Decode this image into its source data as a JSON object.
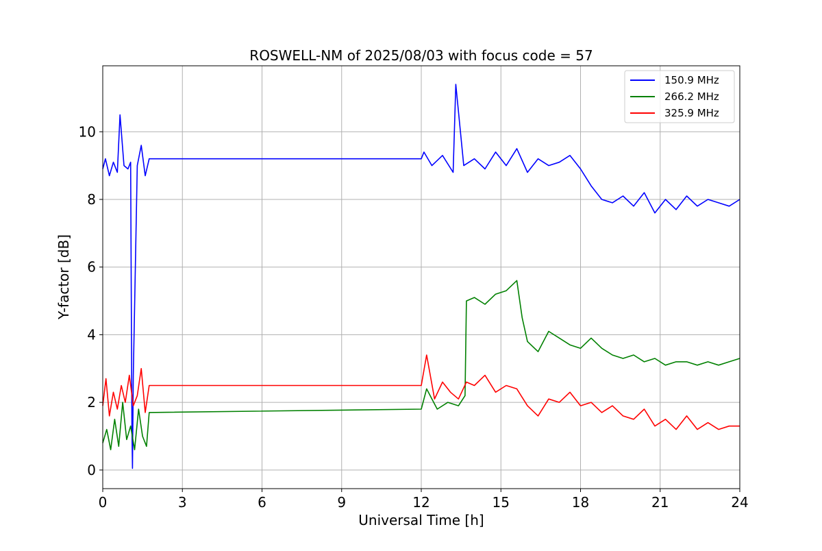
{
  "chart_data": {
    "type": "line",
    "title": "ROSWELL-NM of 2025/08/03 with focus code = 57",
    "xlabel": "Universal Time [h]",
    "ylabel": "Y-factor [dB]",
    "xlim": [
      0,
      24
    ],
    "ylim": [
      -0.55,
      11.95
    ],
    "xticks": [
      0,
      3,
      6,
      9,
      12,
      15,
      18,
      21,
      24
    ],
    "yticks": [
      0,
      2,
      4,
      6,
      8,
      10
    ],
    "grid": true,
    "legend_position": "top-right",
    "series": [
      {
        "name": "150.9 MHz",
        "color": "#0000ff",
        "x": [
          0.0,
          0.1,
          0.25,
          0.4,
          0.55,
          0.65,
          0.8,
          0.95,
          1.05,
          1.1,
          1.12,
          1.15,
          1.3,
          1.45,
          1.6,
          1.75,
          12.0,
          12.1,
          12.4,
          12.8,
          13.2,
          13.3,
          13.6,
          14.0,
          14.4,
          14.8,
          15.2,
          15.6,
          16.0,
          16.4,
          16.8,
          17.2,
          17.6,
          18.0,
          18.4,
          18.8,
          19.2,
          19.6,
          20.0,
          20.4,
          20.8,
          21.2,
          21.6,
          22.0,
          22.4,
          22.8,
          23.2,
          23.6,
          24.0
        ],
        "y": [
          8.9,
          9.2,
          8.7,
          9.1,
          8.8,
          10.5,
          9.0,
          8.9,
          9.1,
          1.2,
          0.05,
          2.8,
          9.0,
          9.6,
          8.7,
          9.2,
          9.2,
          9.4,
          9.0,
          9.3,
          8.8,
          11.4,
          9.0,
          9.2,
          8.9,
          9.4,
          9.0,
          9.5,
          8.8,
          9.2,
          9.0,
          9.1,
          9.3,
          8.9,
          8.4,
          8.0,
          7.9,
          8.1,
          7.8,
          8.2,
          7.6,
          8.0,
          7.7,
          8.1,
          7.8,
          8.0,
          7.9,
          7.8,
          8.0
        ]
      },
      {
        "name": "266.2 MHz",
        "color": "#008000",
        "x": [
          0.0,
          0.15,
          0.3,
          0.45,
          0.6,
          0.75,
          0.9,
          1.05,
          1.2,
          1.35,
          1.5,
          1.65,
          1.75,
          12.0,
          12.2,
          12.6,
          13.0,
          13.4,
          13.65,
          13.7,
          14.0,
          14.4,
          14.8,
          15.2,
          15.6,
          15.8,
          16.0,
          16.4,
          16.8,
          17.2,
          17.6,
          18.0,
          18.4,
          18.8,
          19.2,
          19.6,
          20.0,
          20.4,
          20.8,
          21.2,
          21.6,
          22.0,
          22.4,
          22.8,
          23.2,
          23.6,
          24.0
        ],
        "y": [
          0.8,
          1.2,
          0.6,
          1.5,
          0.7,
          2.0,
          0.9,
          1.3,
          0.6,
          1.8,
          1.0,
          0.7,
          1.7,
          1.8,
          2.4,
          1.8,
          2.0,
          1.9,
          2.2,
          5.0,
          5.1,
          4.9,
          5.2,
          5.3,
          5.6,
          4.5,
          3.8,
          3.5,
          4.1,
          3.9,
          3.7,
          3.6,
          3.9,
          3.6,
          3.4,
          3.3,
          3.4,
          3.2,
          3.3,
          3.1,
          3.2,
          3.2,
          3.1,
          3.2,
          3.1,
          3.2,
          3.3
        ]
      },
      {
        "name": "325.9 MHz",
        "color": "#ff0000",
        "x": [
          0.0,
          0.12,
          0.25,
          0.4,
          0.55,
          0.7,
          0.85,
          1.0,
          1.15,
          1.3,
          1.45,
          1.6,
          1.75,
          12.0,
          12.2,
          12.5,
          12.8,
          13.1,
          13.4,
          13.7,
          14.0,
          14.4,
          14.8,
          15.2,
          15.6,
          16.0,
          16.4,
          16.8,
          17.2,
          17.6,
          18.0,
          18.4,
          18.8,
          19.2,
          19.6,
          20.0,
          20.4,
          20.8,
          21.2,
          21.6,
          22.0,
          22.4,
          22.8,
          23.2,
          23.6,
          24.0
        ],
        "y": [
          1.9,
          2.7,
          1.6,
          2.3,
          1.8,
          2.5,
          2.0,
          2.8,
          1.9,
          2.2,
          3.0,
          1.7,
          2.5,
          2.5,
          3.4,
          2.1,
          2.6,
          2.3,
          2.1,
          2.6,
          2.5,
          2.8,
          2.3,
          2.5,
          2.4,
          1.9,
          1.6,
          2.1,
          2.0,
          2.3,
          1.9,
          2.0,
          1.7,
          1.9,
          1.6,
          1.5,
          1.8,
          1.3,
          1.5,
          1.2,
          1.6,
          1.2,
          1.4,
          1.2,
          1.3,
          1.3
        ]
      }
    ]
  }
}
